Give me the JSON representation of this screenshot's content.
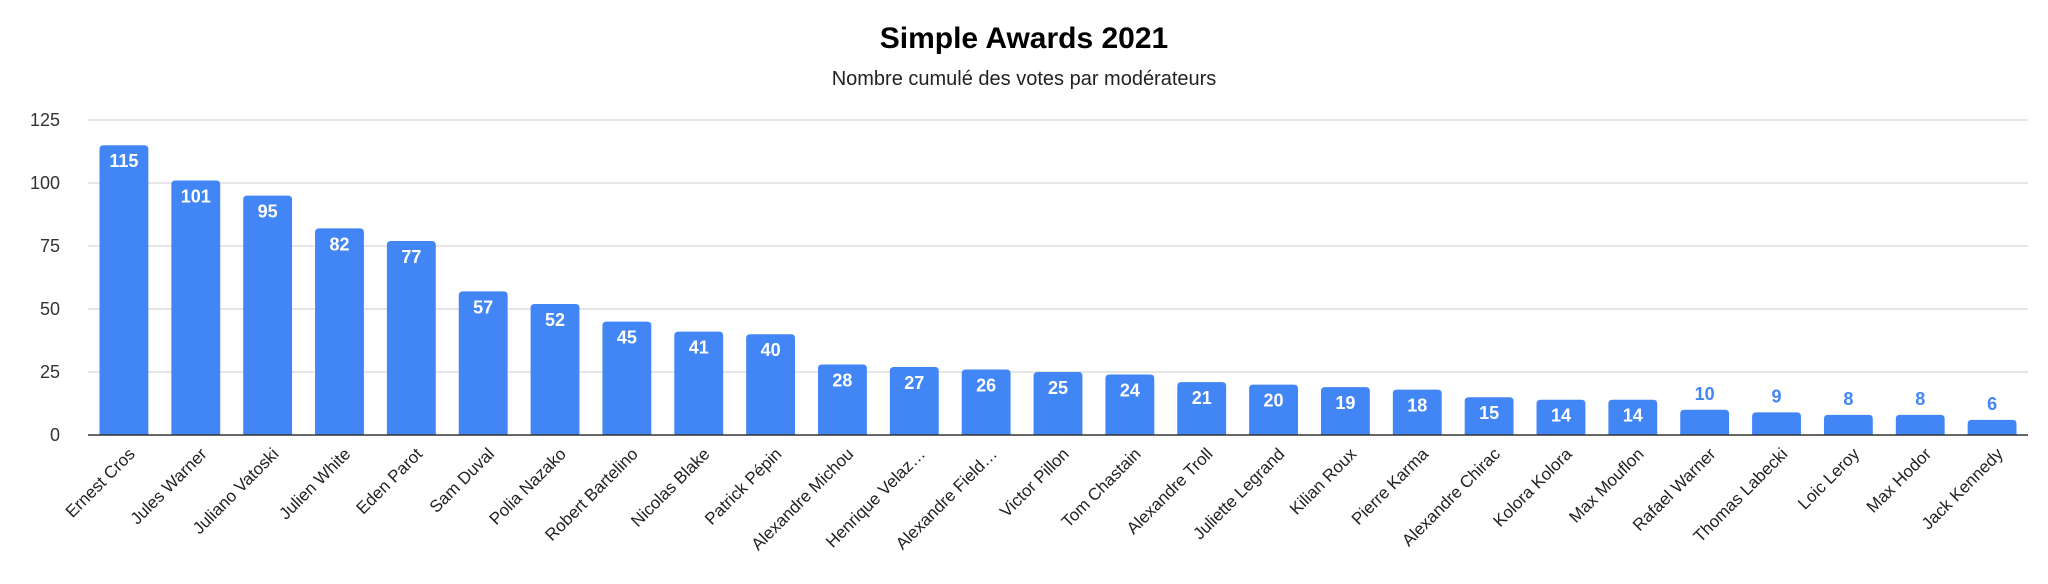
{
  "chart_data": {
    "type": "bar",
    "title": "Simple Awards 2021",
    "subtitle": "Nombre cumulé des votes par modérateurs",
    "xlabel": "",
    "ylabel": "",
    "ylim": [
      0,
      125
    ],
    "yticks": [
      0,
      25,
      50,
      75,
      100,
      125
    ],
    "grid": true,
    "legend": "none",
    "bar_color": "#4285f4",
    "categories": [
      "Ernest Cros",
      "Jules Warner",
      "Juliano Vatoski",
      "Julien White",
      "Eden Parot",
      "Sam Duval",
      "Polia Nazako",
      "Robert Bartelino",
      "Nicolas Blake",
      "Patrick Pépin",
      "Alexandre Michou",
      "Henrique Velaz…",
      "Alexandre Field…",
      "Victor Pillon",
      "Tom Chastain",
      "Alexandre Troll",
      "Juliette Legrand",
      "Kilian Roux",
      "Pierre Karma",
      "Alexandre Chirac",
      "Kolora Kolora",
      "Max Mouflon",
      "Rafael Warner",
      "Thomas Labecki",
      "Loic Leroy",
      "Max Hodor",
      "Jack Kennedy"
    ],
    "values": [
      115,
      101,
      95,
      82,
      77,
      57,
      52,
      45,
      41,
      40,
      28,
      27,
      26,
      25,
      24,
      21,
      20,
      19,
      18,
      15,
      14,
      14,
      10,
      9,
      8,
      8,
      6
    ]
  }
}
